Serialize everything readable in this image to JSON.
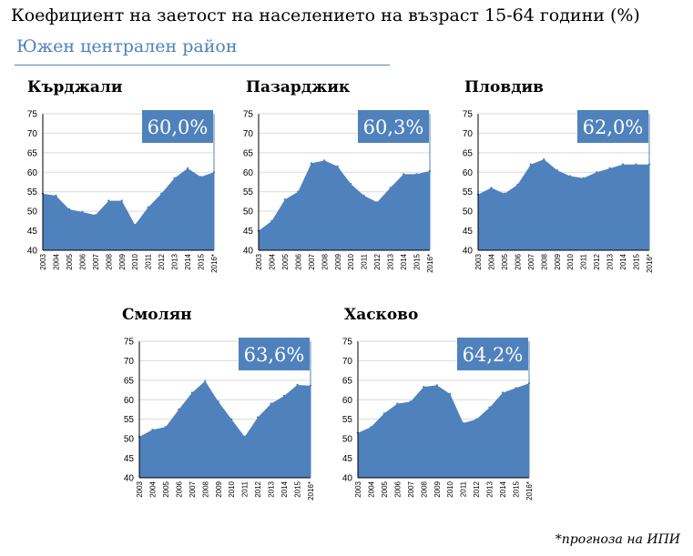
{
  "page": {
    "title": "Коефициент на заетост на населението на възраст 15-64 години (%)",
    "subtitle": "Южен централен район",
    "footnote": "*прогноза на ИПИ"
  },
  "chart_data": [
    {
      "type": "area",
      "title": "Кърджали",
      "badge": "60,0%",
      "categories": [
        "2003",
        "2004",
        "2005",
        "2006",
        "2007",
        "2008",
        "2009",
        "2010",
        "2011",
        "2012",
        "2013",
        "2014",
        "2015",
        "2016*"
      ],
      "values": [
        54.5,
        54.0,
        50.5,
        49.8,
        49.0,
        52.7,
        52.7,
        46.5,
        51.0,
        54.5,
        58.5,
        61.0,
        58.8,
        60.0
      ],
      "ylim": [
        40,
        75
      ],
      "yticks": [
        40,
        45,
        50,
        55,
        60,
        65,
        70,
        75
      ],
      "color": "#4f81bd"
    },
    {
      "type": "area",
      "title": "Пазарджик",
      "badge": "60,3%",
      "categories": [
        "2003",
        "2004",
        "2005",
        "2006",
        "2007",
        "2008",
        "2009",
        "2010",
        "2011",
        "2012",
        "2013",
        "2014",
        "2015",
        "2016*"
      ],
      "values": [
        45.0,
        47.5,
        53.0,
        55.0,
        62.3,
        63.0,
        61.5,
        57.0,
        54.0,
        52.3,
        56.0,
        59.5,
        59.5,
        60.3
      ],
      "ylim": [
        40,
        75
      ],
      "yticks": [
        40,
        45,
        50,
        55,
        60,
        65,
        70,
        75
      ],
      "color": "#4f81bd"
    },
    {
      "type": "area",
      "title": "Пловдив",
      "badge": "62,0%",
      "categories": [
        "2003",
        "2004",
        "2005",
        "2006",
        "2007",
        "2008",
        "2009",
        "2010",
        "2011",
        "2012",
        "2013",
        "2014",
        "2015",
        "2016*"
      ],
      "values": [
        54.3,
        56.0,
        54.5,
        56.8,
        62.0,
        63.3,
        60.5,
        59.0,
        58.5,
        60.0,
        61.0,
        62.0,
        62.0,
        62.0
      ],
      "ylim": [
        40,
        75
      ],
      "yticks": [
        40,
        45,
        50,
        55,
        60,
        65,
        70,
        75
      ],
      "color": "#4f81bd"
    },
    {
      "type": "area",
      "title": "Смолян",
      "badge": "63,6%",
      "categories": [
        "2003",
        "2004",
        "2005",
        "2006",
        "2007",
        "2008",
        "2009",
        "2010",
        "2011",
        "2012",
        "2013",
        "2014",
        "2015",
        "2016*"
      ],
      "values": [
        50.5,
        52.3,
        53.0,
        57.5,
        61.8,
        64.8,
        59.5,
        55.0,
        50.5,
        55.5,
        59.0,
        61.0,
        63.8,
        63.6
      ],
      "ylim": [
        40,
        75
      ],
      "yticks": [
        40,
        45,
        50,
        55,
        60,
        65,
        70,
        75
      ],
      "color": "#4f81bd"
    },
    {
      "type": "area",
      "title": "Хасково",
      "badge": "64,2%",
      "categories": [
        "2003",
        "2004",
        "2005",
        "2006",
        "2007",
        "2008",
        "2009",
        "2010",
        "2011",
        "2012",
        "2013",
        "2014",
        "2015",
        "2016*"
      ],
      "values": [
        51.5,
        53.0,
        56.5,
        59.0,
        59.5,
        63.3,
        63.7,
        61.5,
        54.0,
        55.0,
        58.0,
        61.8,
        63.0,
        64.2
      ],
      "ylim": [
        40,
        75
      ],
      "yticks": [
        40,
        45,
        50,
        55,
        60,
        65,
        70,
        75
      ],
      "color": "#4f81bd"
    }
  ]
}
